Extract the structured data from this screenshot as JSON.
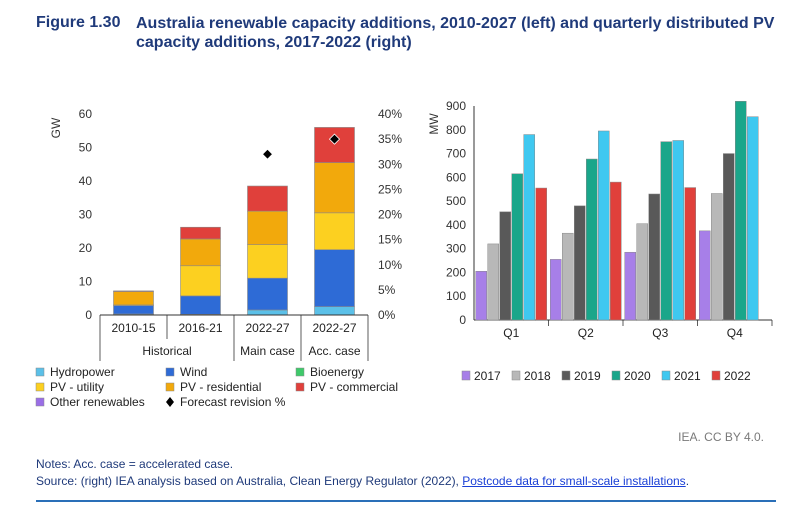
{
  "figure": {
    "label": "Figure 1.30",
    "title": "Australia renewable capacity additions, 2010-2027 (left) and quarterly distributed PV capacity additions, 2017-2022 (right)",
    "credit": "IEA. CC BY 4.0.",
    "notes": "Notes: Acc. case = accelerated case.",
    "source_prefix": "Source: (right) IEA analysis based on Australia, Clean Energy Regulator (2022), ",
    "source_link": "Postcode data for small-scale installations",
    "source_suffix": "."
  },
  "chart_data": [
    {
      "type": "bar",
      "stacked": true,
      "ylabel": "GW",
      "ylim": [
        0,
        60
      ],
      "yticks": [
        0,
        10,
        20,
        30,
        40,
        50,
        60
      ],
      "y2lim": [
        0,
        0.4
      ],
      "y2ticks": [
        "0%",
        "5%",
        "10%",
        "15%",
        "20%",
        "25%",
        "30%",
        "35%",
        "40%"
      ],
      "categories": [
        "2010-15",
        "2016-21",
        "2022-27",
        "2022-27"
      ],
      "groups": [
        {
          "label": "Historical",
          "span": [
            0,
            1
          ]
        },
        {
          "label": "Main case",
          "span": [
            2,
            2
          ]
        },
        {
          "label": "Acc. case",
          "span": [
            3,
            3
          ]
        }
      ],
      "series": [
        {
          "name": "Hydropower",
          "color": "#5bc0e8",
          "values": [
            0.3,
            0.2,
            1.5,
            2.5
          ]
        },
        {
          "name": "Wind",
          "color": "#2e6bd6",
          "values": [
            2.5,
            5.5,
            9.5,
            17.0
          ]
        },
        {
          "name": "Bioenergy",
          "color": "#3ec96a",
          "values": [
            0,
            0,
            0,
            0
          ]
        },
        {
          "name": "PV - utility",
          "color": "#fcd020",
          "values": [
            0.2,
            9.0,
            10.0,
            11.0
          ]
        },
        {
          "name": "PV - residential",
          "color": "#f2a90c",
          "values": [
            4.0,
            8.0,
            10.0,
            15.0
          ]
        },
        {
          "name": "PV - commercial",
          "color": "#e0403b",
          "values": [
            0.2,
            3.5,
            7.5,
            10.5
          ]
        },
        {
          "name": "Other renewables",
          "color": "#9a6ee6",
          "values": [
            0,
            0,
            0,
            0
          ]
        }
      ],
      "forecast_revision": {
        "name": "Forecast revision %",
        "values": [
          null,
          null,
          0.32,
          0.35
        ]
      },
      "legend": "bottom"
    },
    {
      "type": "bar",
      "ylabel": "MW",
      "ylim": [
        0,
        900
      ],
      "yticks": [
        0,
        100,
        200,
        300,
        400,
        500,
        600,
        700,
        800,
        900
      ],
      "categories": [
        "Q1",
        "Q2",
        "Q3",
        "Q4"
      ],
      "series": [
        {
          "name": "2017",
          "color": "#a77fe8",
          "values": [
            205,
            255,
            285,
            375
          ]
        },
        {
          "name": "2018",
          "color": "#b8b8b8",
          "values": [
            320,
            365,
            405,
            532
          ]
        },
        {
          "name": "2019",
          "color": "#595959",
          "values": [
            455,
            480,
            530,
            700
          ]
        },
        {
          "name": "2020",
          "color": "#1aa68a",
          "values": [
            615,
            677,
            750,
            920
          ]
        },
        {
          "name": "2021",
          "color": "#3fc8f0",
          "values": [
            780,
            795,
            755,
            855
          ]
        },
        {
          "name": "2022",
          "color": "#e0403b",
          "values": [
            555,
            580,
            557,
            null
          ]
        }
      ],
      "legend": "bottom"
    }
  ]
}
